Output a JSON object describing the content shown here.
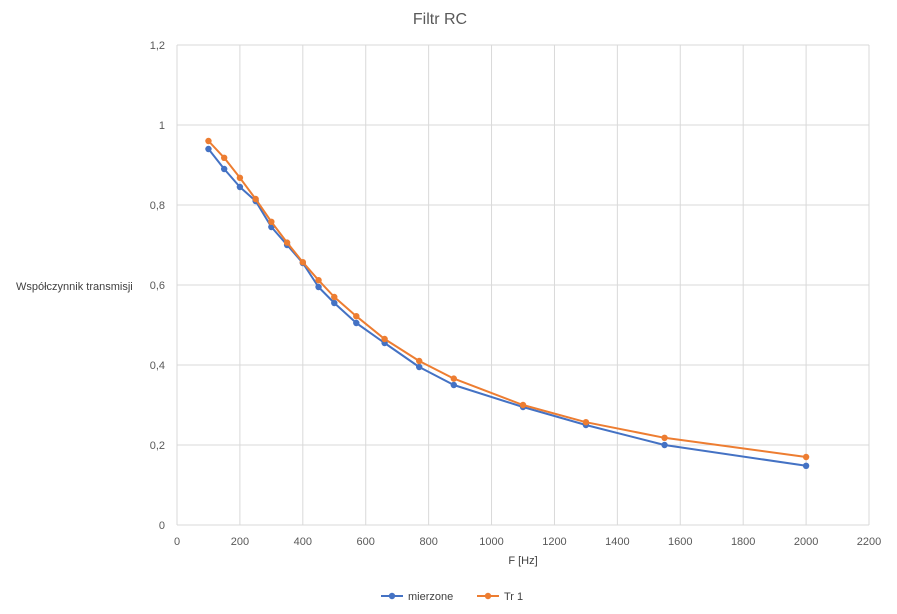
{
  "chart_data": {
    "type": "line",
    "title": "Filtr RC",
    "xlabel": "F [Hz]",
    "ylabel": "Współczynnik transmisji",
    "xlim": [
      0,
      2200
    ],
    "ylim": [
      0,
      1.2
    ],
    "x_ticks": [
      "0",
      "200",
      "400",
      "600",
      "800",
      "1000",
      "1200",
      "1400",
      "1600",
      "1800",
      "2000",
      "2200"
    ],
    "y_ticks": [
      "0",
      "0,2",
      "0,4",
      "0,6",
      "0,8",
      "1",
      "1,2"
    ],
    "grid": "vertical and horizontal",
    "legend_position": "bottom",
    "series": [
      {
        "name": "mierzone",
        "color": "#4472c4",
        "points": [
          [
            100,
            0.94
          ],
          [
            150,
            0.89
          ],
          [
            200,
            0.845
          ],
          [
            250,
            0.81
          ],
          [
            300,
            0.745
          ],
          [
            350,
            0.7
          ],
          [
            400,
            0.655
          ],
          [
            450,
            0.595
          ],
          [
            500,
            0.555
          ],
          [
            570,
            0.505
          ],
          [
            660,
            0.455
          ],
          [
            770,
            0.395
          ],
          [
            880,
            0.35
          ],
          [
            1100,
            0.295
          ],
          [
            1300,
            0.25
          ],
          [
            1550,
            0.2
          ],
          [
            2000,
            0.148
          ]
        ]
      },
      {
        "name": "Tr 1",
        "color": "#ed7d31",
        "points": [
          [
            100,
            0.96
          ],
          [
            150,
            0.918
          ],
          [
            200,
            0.868
          ],
          [
            250,
            0.815
          ],
          [
            300,
            0.758
          ],
          [
            350,
            0.706
          ],
          [
            400,
            0.657
          ],
          [
            450,
            0.612
          ],
          [
            500,
            0.57
          ],
          [
            570,
            0.522
          ],
          [
            660,
            0.465
          ],
          [
            770,
            0.41
          ],
          [
            880,
            0.366
          ],
          [
            1100,
            0.3
          ],
          [
            1300,
            0.257
          ],
          [
            1550,
            0.218
          ],
          [
            2000,
            0.17
          ]
        ]
      }
    ]
  }
}
